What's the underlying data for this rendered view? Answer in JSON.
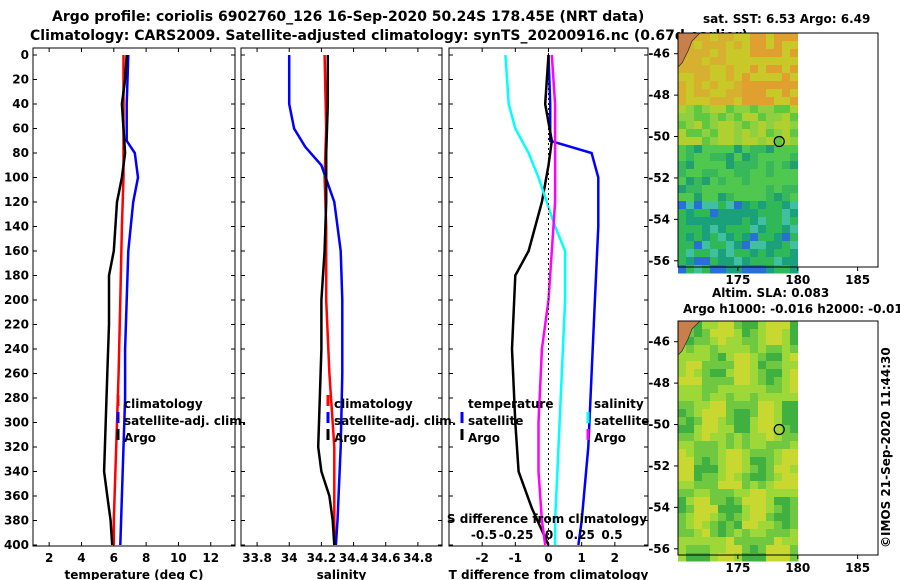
{
  "title": {
    "line1": "Argo profile: coriolis 6902760_126 16-Sep-2020 50.24S 178.45E (NRT data)",
    "line2": "Climatology: CARS2009. Satellite-adjusted climatology: synTS_20200916.nc (0.67d earlier)"
  },
  "colors": {
    "climatology": "#ff0000",
    "satellite": "#0000ff",
    "argo": "#000000",
    "sat_salinity": "#00ffff",
    "salinity_diff": "#ff00ff"
  },
  "chart_data": [
    {
      "type": "line",
      "name": "temperature-panel",
      "xlabel": "temperature (deg C)",
      "ylabel": "",
      "xlim": [
        1,
        13.5
      ],
      "ylim": [
        400,
        0
      ],
      "xticks": [
        2,
        4,
        6,
        8,
        10,
        12
      ],
      "yticks": [
        0,
        20,
        40,
        60,
        80,
        100,
        120,
        140,
        160,
        180,
        200,
        220,
        240,
        260,
        280,
        300,
        320,
        340,
        360,
        380,
        400
      ],
      "legend": {
        "placement": "bottom-right",
        "entries": [
          "climatology",
          "satellite-adj. clim.",
          "Argo"
        ]
      },
      "series": [
        {
          "name": "climatology",
          "color": "#ff0000",
          "points": [
            [
              6.6,
              0
            ],
            [
              6.6,
              40
            ],
            [
              6.6,
              80
            ],
            [
              6.6,
              100
            ],
            [
              6.5,
              140
            ],
            [
              6.4,
              200
            ],
            [
              6.3,
              260
            ],
            [
              6.2,
              300
            ],
            [
              6.1,
              340
            ],
            [
              6.0,
              380
            ],
            [
              6.0,
              400
            ]
          ]
        },
        {
          "name": "satellite-adj. clim.",
          "color": "#0000ff",
          "points": [
            [
              6.9,
              0
            ],
            [
              6.8,
              40
            ],
            [
              6.8,
              70
            ],
            [
              7.3,
              80
            ],
            [
              7.5,
              100
            ],
            [
              7.2,
              120
            ],
            [
              6.9,
              160
            ],
            [
              6.8,
              200
            ],
            [
              6.7,
              240
            ],
            [
              6.7,
              280
            ],
            [
              6.6,
              320
            ],
            [
              6.5,
              360
            ],
            [
              6.4,
              400
            ]
          ]
        },
        {
          "name": "Argo",
          "color": "#000000",
          "points": [
            [
              6.8,
              0
            ],
            [
              6.7,
              20
            ],
            [
              6.5,
              40
            ],
            [
              6.6,
              60
            ],
            [
              6.7,
              80
            ],
            [
              6.5,
              100
            ],
            [
              6.2,
              120
            ],
            [
              6.0,
              160
            ],
            [
              5.7,
              180
            ],
            [
              5.7,
              220
            ],
            [
              5.6,
              260
            ],
            [
              5.5,
              300
            ],
            [
              5.4,
              340
            ],
            [
              5.6,
              360
            ],
            [
              5.8,
              380
            ],
            [
              5.9,
              400
            ]
          ]
        }
      ]
    },
    {
      "type": "line",
      "name": "salinity-panel",
      "xlabel": "salinity",
      "ylabel": "",
      "xlim": [
        33.7,
        34.95
      ],
      "ylim": [
        400,
        0
      ],
      "xticks": [
        33.8,
        34,
        34.2,
        34.4,
        34.6,
        34.8
      ],
      "legend": {
        "placement": "bottom-right",
        "entries": [
          "climatology",
          "satellite-adj. clim.",
          "Argo"
        ]
      },
      "series": [
        {
          "name": "climatology",
          "color": "#ff0000",
          "points": [
            [
              34.22,
              0
            ],
            [
              34.23,
              60
            ],
            [
              34.22,
              100
            ],
            [
              34.23,
              140
            ],
            [
              34.23,
              200
            ],
            [
              34.25,
              260
            ],
            [
              34.28,
              320
            ],
            [
              34.28,
              380
            ],
            [
              34.28,
              400
            ]
          ]
        },
        {
          "name": "satellite-adj. clim.",
          "color": "#0000ff",
          "points": [
            [
              34.0,
              0
            ],
            [
              34.0,
              40
            ],
            [
              34.03,
              60
            ],
            [
              34.1,
              75
            ],
            [
              34.2,
              90
            ],
            [
              34.28,
              120
            ],
            [
              34.32,
              160
            ],
            [
              34.33,
              200
            ],
            [
              34.33,
              260
            ],
            [
              34.32,
              320
            ],
            [
              34.3,
              380
            ],
            [
              34.29,
              400
            ]
          ]
        },
        {
          "name": "Argo",
          "color": "#000000",
          "points": [
            [
              34.24,
              0
            ],
            [
              34.24,
              40
            ],
            [
              34.23,
              80
            ],
            [
              34.23,
              120
            ],
            [
              34.22,
              160
            ],
            [
              34.2,
              200
            ],
            [
              34.2,
              240
            ],
            [
              34.19,
              280
            ],
            [
              34.18,
              320
            ],
            [
              34.2,
              340
            ],
            [
              34.25,
              360
            ],
            [
              34.27,
              380
            ],
            [
              34.28,
              400
            ]
          ]
        }
      ]
    },
    {
      "type": "line",
      "name": "difference-panel",
      "xlabel": "T difference from climatology",
      "x2label": "S difference from climatology",
      "xlim": [
        -3,
        3
      ],
      "ylim": [
        400,
        0
      ],
      "xticks": [
        -2,
        -1,
        0,
        1,
        2
      ],
      "x2ticks": [
        "-0.5",
        "-0.25",
        "0",
        "0.25",
        "0.5"
      ],
      "legend": {
        "placement": "bottom",
        "groups": [
          "temperature",
          "salinity"
        ],
        "entries": [
          "satellite",
          "Argo"
        ]
      },
      "series": [
        {
          "name": "temperature satellite",
          "color": "#0000ff",
          "points": [
            [
              0,
              0
            ],
            [
              0.05,
              40
            ],
            [
              0.05,
              70
            ],
            [
              1.3,
              80
            ],
            [
              1.5,
              100
            ],
            [
              1.5,
              140
            ],
            [
              1.4,
              200
            ],
            [
              1.3,
              260
            ],
            [
              1.2,
              320
            ],
            [
              1.0,
              380
            ],
            [
              0.9,
              400
            ]
          ]
        },
        {
          "name": "temperature Argo",
          "color": "#000000",
          "points": [
            [
              0,
              0
            ],
            [
              -0.1,
              40
            ],
            [
              0.1,
              70
            ],
            [
              0,
              90
            ],
            [
              -0.2,
              120
            ],
            [
              -0.6,
              160
            ],
            [
              -1.0,
              180
            ],
            [
              -1.1,
              240
            ],
            [
              -1.0,
              300
            ],
            [
              -0.9,
              340
            ],
            [
              -0.5,
              370
            ],
            [
              0,
              400
            ]
          ]
        },
        {
          "name": "salinity satellite",
          "color": "#00ffff",
          "points": [
            [
              -1.3,
              0
            ],
            [
              -1.2,
              40
            ],
            [
              -1.0,
              60
            ],
            [
              -0.6,
              80
            ],
            [
              -0.3,
              100
            ],
            [
              0.2,
              140
            ],
            [
              0.5,
              160
            ],
            [
              0.5,
              200
            ],
            [
              0.4,
              260
            ],
            [
              0.3,
              320
            ],
            [
              0.2,
              380
            ],
            [
              0.2,
              400
            ]
          ]
        },
        {
          "name": "salinity Argo",
          "color": "#ff00ff",
          "points": [
            [
              0.1,
              0
            ],
            [
              0.2,
              40
            ],
            [
              0.2,
              80
            ],
            [
              0.2,
              120
            ],
            [
              0.1,
              160
            ],
            [
              0,
              200
            ],
            [
              -0.2,
              240
            ],
            [
              -0.3,
              300
            ],
            [
              -0.3,
              340
            ],
            [
              -0.2,
              380
            ],
            [
              -0.1,
              400
            ]
          ]
        }
      ]
    }
  ],
  "maps": [
    {
      "name": "sst-map",
      "title": "sat. SST: 6.53 Argo: 6.49",
      "yticks": [
        "-46",
        "-48",
        "-50",
        "-52",
        "-54",
        "-56"
      ],
      "xticks": [
        "175",
        "180",
        "185"
      ],
      "profile": {
        "lon": 178.45,
        "lat": -50.24
      }
    },
    {
      "name": "sla-map",
      "title_line1": "Altim. SLA: 0.083",
      "title_line2": "Argo h1000: -0.016 h2000: -0.01",
      "yticks": [
        "-46",
        "-48",
        "-50",
        "-52",
        "-54",
        "-56"
      ],
      "xticks": [
        "175",
        "180",
        "185"
      ],
      "profile": {
        "lon": 178.45,
        "lat": -50.24
      }
    }
  ],
  "watermark": "©IMOS 21-Sep-2020 11:44:30"
}
